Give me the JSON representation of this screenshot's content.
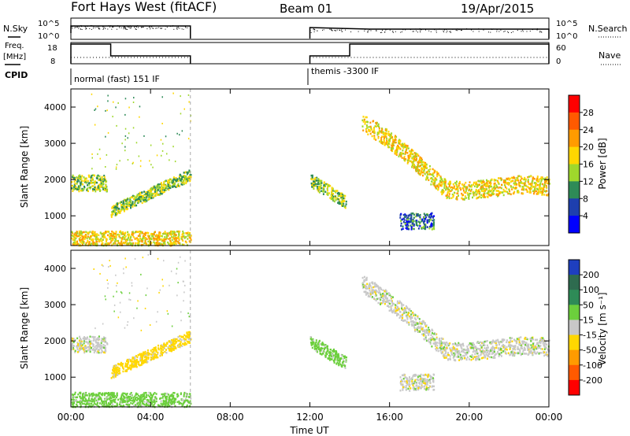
{
  "header": {
    "station": "Fort Hays West (fitACF)",
    "beam": "Beam 01",
    "date": "19/Apr/2015"
  },
  "left_labels": {
    "nsky": "N.Sky",
    "freq_line1": "Freq.",
    "freq_line2": "[MHz]",
    "cpid": "CPID"
  },
  "right_labels": {
    "nsearch": "N.Search",
    "nave": "Nave"
  },
  "noise_panel": {
    "left_ticks": [
      "10^5",
      "10^0"
    ],
    "right_ticks": [
      "10^5",
      "10^0"
    ]
  },
  "freq_panel": {
    "left_ticks": [
      "18",
      "8"
    ],
    "right_ticks": [
      "60",
      "0"
    ]
  },
  "cpid_panel": {
    "segments": [
      {
        "start_hour": 0,
        "end_hour": 12,
        "label": "normal (fast) 151 IF"
      },
      {
        "start_hour": 12,
        "end_hour": 24,
        "label": "themis -3300 IF"
      }
    ]
  },
  "x_axis": {
    "label": "Time UT",
    "ticks": [
      "00:00",
      "04:00",
      "08:00",
      "12:00",
      "16:00",
      "20:00",
      "00:00"
    ],
    "tick_hours": [
      0,
      4,
      8,
      12,
      16,
      20,
      24
    ]
  },
  "power_colorbar": {
    "label": "Power [dB]",
    "ticks": [
      "28",
      "24",
      "20",
      "16",
      "12",
      "8",
      "4"
    ],
    "colors": [
      "#ff0000",
      "#ff5a00",
      "#ff9b00",
      "#ffd700",
      "#9fd82c",
      "#2e8b57",
      "#1e3fae",
      "#0000ff"
    ]
  },
  "velocity_colorbar": {
    "label": "Velocity [m s⁻¹]",
    "ticks": [
      "200",
      "100",
      "50",
      "15",
      "-15",
      "-50",
      "-100",
      "-200"
    ],
    "colors": [
      "#1e3fbf",
      "#2e6b4f",
      "#2e8b57",
      "#6ccf3c",
      "#c8c8c8",
      "#ffd700",
      "#ff9b00",
      "#ff5a00",
      "#ff0000"
    ]
  },
  "chart_data": [
    {
      "type": "heatmap",
      "title": "",
      "ylabel": "Slant Range [km]",
      "xlabel": "",
      "xlim": [
        0,
        24
      ],
      "ylim": [
        180,
        4500
      ],
      "yticks": [
        1000,
        2000,
        3000,
        4000
      ],
      "quantity": "Power [dB]",
      "features": [
        {
          "t_start": 0.0,
          "t_end": 1.8,
          "range_start": 1700,
          "range_end": 2150,
          "value": 12
        },
        {
          "t_start": 2.0,
          "t_end": 6.0,
          "range_start": 1050,
          "range_end": 2300,
          "value": 12
        },
        {
          "t_start": 0.0,
          "t_end": 6.0,
          "range_start": 180,
          "range_end": 600,
          "value": 16
        },
        {
          "t_start": 12.0,
          "t_end": 13.8,
          "range_start": 1300,
          "range_end": 2200,
          "value": 12
        },
        {
          "t_start": 14.6,
          "t_end": 24.0,
          "range_start": 1600,
          "range_end": 3900,
          "value": 16
        },
        {
          "t_start": 16.5,
          "t_end": 18.2,
          "range_start": 650,
          "range_end": 1100,
          "value": 6
        }
      ]
    },
    {
      "type": "heatmap",
      "title": "",
      "ylabel": "Slant Range [km]",
      "xlabel": "Time UT",
      "xlim": [
        0,
        24
      ],
      "ylim": [
        180,
        4500
      ],
      "yticks": [
        1000,
        2000,
        3000,
        4000
      ],
      "quantity": "Velocity [m s⁻¹]",
      "features": [
        {
          "t_start": 0.0,
          "t_end": 1.8,
          "range_start": 1700,
          "range_end": 2150,
          "value": 0
        },
        {
          "t_start": 2.0,
          "t_end": 6.0,
          "range_start": 1050,
          "range_end": 2300,
          "value": -30
        },
        {
          "t_start": 0.0,
          "t_end": 6.0,
          "range_start": 180,
          "range_end": 600,
          "value": 30
        },
        {
          "t_start": 12.0,
          "t_end": 13.8,
          "range_start": 1300,
          "range_end": 2200,
          "value": 30
        },
        {
          "t_start": 14.6,
          "t_end": 24.0,
          "range_start": 1600,
          "range_end": 3900,
          "value": 0
        },
        {
          "t_start": 16.5,
          "t_end": 18.2,
          "range_start": 650,
          "range_end": 1100,
          "value": 0
        }
      ]
    }
  ]
}
